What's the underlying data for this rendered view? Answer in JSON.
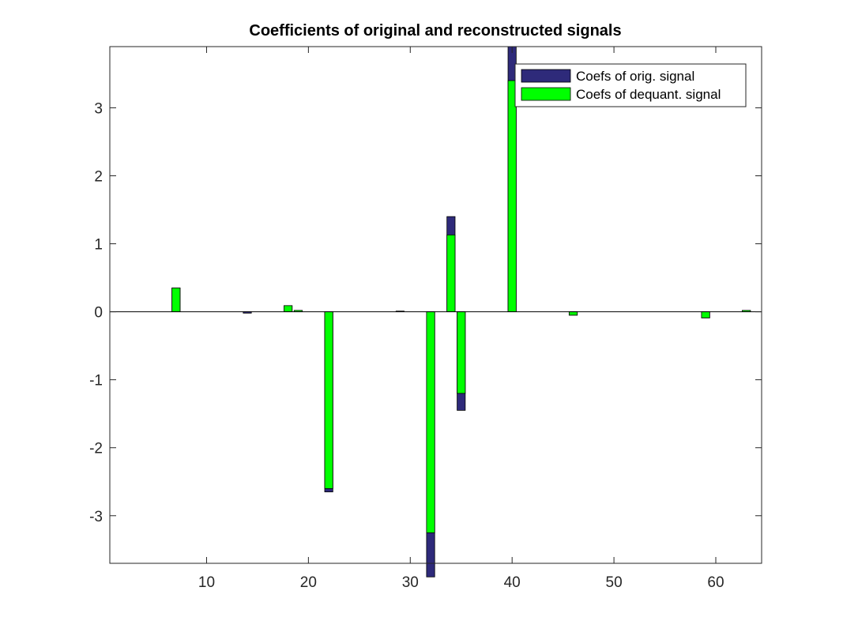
{
  "chart_data": {
    "type": "bar",
    "title": "Coefficients of original and reconstructed signals",
    "xlabel": "",
    "ylabel": "",
    "xlim": [
      0.5,
      64.5
    ],
    "ylim": [
      -3.7,
      3.9
    ],
    "xticks": [
      10,
      20,
      30,
      40,
      50,
      60
    ],
    "yticks": [
      -3,
      -2,
      -1,
      0,
      1,
      2,
      3
    ],
    "grid": false,
    "legend_position": "top-right",
    "colors": {
      "original": "#2e2a7a",
      "dequantized": "#00ff00"
    },
    "series": [
      {
        "name": "Coefs of orig. signal",
        "x": [
          7,
          14,
          18,
          19,
          22,
          29,
          32,
          34,
          35,
          40,
          46,
          59,
          63
        ],
        "values": [
          0.35,
          -0.02,
          0.09,
          0.02,
          -2.65,
          0.01,
          -3.9,
          1.4,
          -1.45,
          3.9,
          -0.05,
          -0.09,
          0.02
        ]
      },
      {
        "name": "Coefs of dequant. signal",
        "x": [
          7,
          14,
          18,
          19,
          22,
          29,
          32,
          34,
          35,
          40,
          46,
          59,
          63
        ],
        "values": [
          0.35,
          0.0,
          0.09,
          0.02,
          -2.6,
          0.0,
          -3.25,
          1.13,
          -1.2,
          3.4,
          -0.05,
          -0.09,
          0.02
        ]
      }
    ]
  }
}
